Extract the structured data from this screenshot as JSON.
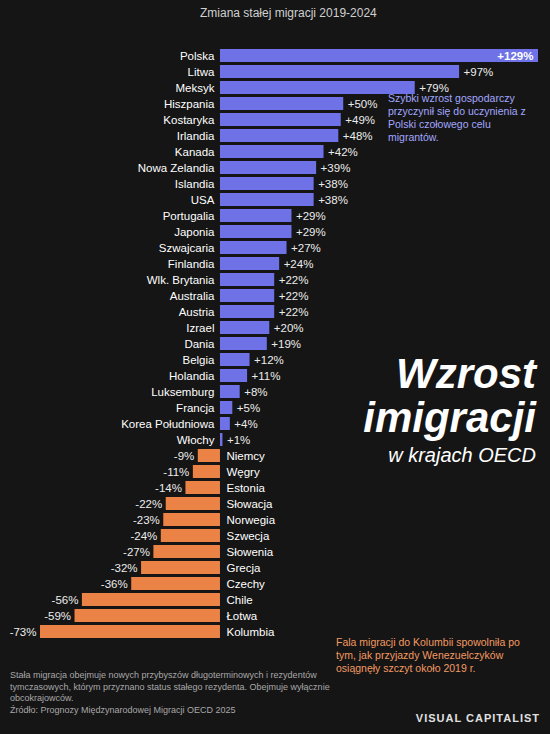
{
  "chart_data": {
    "type": "bar",
    "orientation": "horizontal",
    "x_label": "Zmiana stałej migracji 2019-2024",
    "title": "Wzrost imigracji",
    "subtitle": "w krajach OECD",
    "categories": [
      "Polska",
      "Litwa",
      "Meksyk",
      "Hiszpania",
      "Kostaryka",
      "Irlandia",
      "Kanada",
      "Nowa Zelandia",
      "Islandia",
      "USA",
      "Portugalia",
      "Japonia",
      "Szwajcaria",
      "Finlandia",
      "Wlk. Brytania",
      "Australia",
      "Austria",
      "Izrael",
      "Dania",
      "Belgia",
      "Holandia",
      "Luksemburg",
      "Francja",
      "Korea Południowa",
      "Włochy",
      "Niemcy",
      "Węgry",
      "Estonia",
      "Słowacja",
      "Norwegia",
      "Szwecja",
      "Słowenia",
      "Grecja",
      "Czechy",
      "Chile",
      "Łotwa",
      "Kolumbia"
    ],
    "values": [
      129,
      97,
      79,
      50,
      49,
      48,
      42,
      39,
      38,
      38,
      29,
      29,
      27,
      24,
      22,
      22,
      22,
      20,
      19,
      12,
      11,
      8,
      5,
      4,
      1,
      -9,
      -11,
      -14,
      -22,
      -23,
      -24,
      -27,
      -32,
      -36,
      -56,
      -59,
      -73
    ],
    "value_labels": [
      "+129%",
      "+97%",
      "+79%",
      "+50%",
      "+49%",
      "+48%",
      "+42%",
      "+39%",
      "+38%",
      "+38%",
      "+29%",
      "+29%",
      "+27%",
      "+24%",
      "+22%",
      "+22%",
      "+22%",
      "+20%",
      "+19%",
      "+12%",
      "+11%",
      "+8%",
      "+5%",
      "+4%",
      "+1%",
      "-9%",
      "-11%",
      "-14%",
      "-22%",
      "-23%",
      "-24%",
      "-27%",
      "-32%",
      "-36%",
      "-56%",
      "-59%",
      "-73%"
    ],
    "colors": [
      "#6e72e6",
      "#6e72e6",
      "#6e72e6",
      "#6e72e6",
      "#6e72e6",
      "#6e72e6",
      "#6e72e6",
      "#6e72e6",
      "#6e72e6",
      "#6e72e6",
      "#6e72e6",
      "#6e72e6",
      "#6e72e6",
      "#6e72e6",
      "#6e72e6",
      "#6e72e6",
      "#6e72e6",
      "#6e72e6",
      "#6e72e6",
      "#6e72e6",
      "#6e72e6",
      "#6e72e6",
      "#6e72e6",
      "#6e72e6",
      "#6e72e6",
      "#ec8346",
      "#ec8346",
      "#ec8346",
      "#ec8346",
      "#ec8346",
      "#ec8346",
      "#ec8346",
      "#ec8346",
      "#ec8346",
      "#ec8346",
      "#ec8346",
      "#ec8346"
    ],
    "data_labels": true,
    "tick_labels": "y",
    "grid": false,
    "annotations": [
      "Szybki wzrost gospodarczy przyczynił się do uczynienia z Polski czołowego celu migrantów.",
      "Fala migracji do Kolumbii spowolniła po tym, jak przyjazdy Wenezuelczyków osiągnęły szczyt około 2019 r."
    ],
    "footnote": "Stała migracja obejmuje nowych przybyszów długoterminowych i rezydentów tymczasowych, którym przyznano status stałego rezydenta. Obejmuje wyłącznie obcokrajowców.",
    "source": "Źródło: Prognozy Międzynarodowej Migracji OECD 2025",
    "brand": "VISUAL CAPITALIST"
  }
}
